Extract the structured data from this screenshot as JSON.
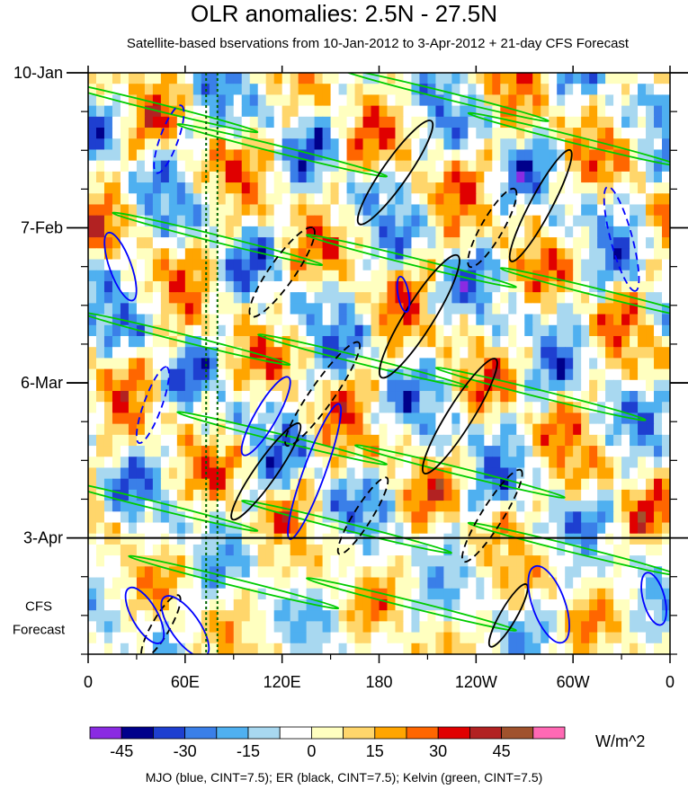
{
  "chart_data": {
    "type": "heatmap",
    "title": "OLR anomalies: 2.5N - 27.5N",
    "subtitle": "Satellite-based bservations from 10-Jan-2012 to 3-Apr-2012 + 21-day CFS Forecast",
    "x_ticks": [
      "0",
      "60E",
      "120E",
      "180",
      "120W",
      "60W",
      "0"
    ],
    "x_tick_degrees": [
      0,
      60,
      120,
      180,
      240,
      300,
      360
    ],
    "y_ticks": [
      "10-Jan",
      "7-Feb",
      "6-Mar",
      "3-Apr"
    ],
    "y_tick_days": [
      0,
      28,
      56,
      84
    ],
    "y_range_days": [
      0,
      105
    ],
    "forecast_label": [
      "CFS",
      "Forecast"
    ],
    "forecast_start_day": 84,
    "reference_lines_deg": [
      73,
      80
    ],
    "colorbar": {
      "units": "W/m^2",
      "tick_labels": [
        "-45",
        "-30",
        "-15",
        "0",
        "15",
        "30",
        "45"
      ],
      "tick_values": [
        -45,
        -30,
        -15,
        0,
        15,
        30,
        45
      ],
      "colors": [
        "#8a2be2",
        "#00008b",
        "#1e3fd0",
        "#3a7fe8",
        "#4fb0f0",
        "#a8d8f0",
        "#ffffff",
        "#ffffc0",
        "#ffd66b",
        "#ffa500",
        "#ff6600",
        "#e00000",
        "#b22222",
        "#a0522d",
        "#ff69b4"
      ]
    },
    "contours": [
      {
        "name": "MJO",
        "color": "#0000ff"
      },
      {
        "name": "ER",
        "color": "#000000"
      },
      {
        "name": "Kelvin",
        "color": "#00cc00"
      }
    ],
    "footnote": "MJO (blue, CINT=7.5); ER (black, CINT=7.5); Kelvin (green, CINT=7.5)"
  }
}
